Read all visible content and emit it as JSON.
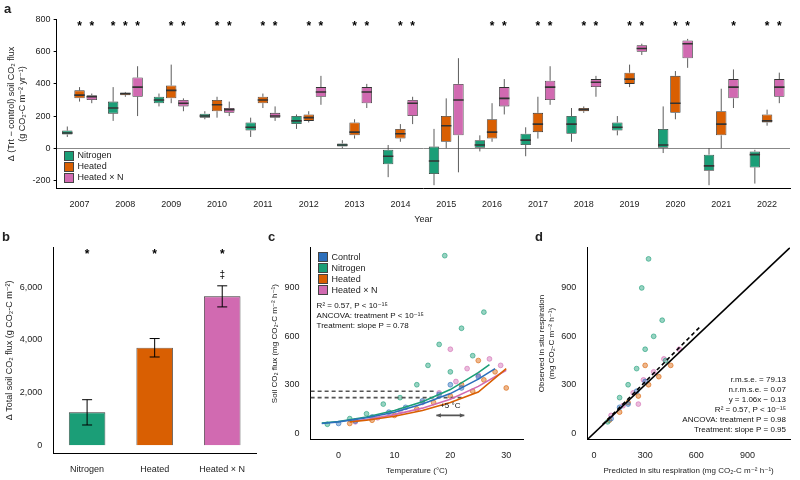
{
  "chart_data": [
    {
      "type": "boxplot",
      "title": "a",
      "xlabel": "Year",
      "ylabel": [
        "Δ (Trt − control) soil CO₂ flux",
        "(g CO₂-C m⁻² yr⁻¹)"
      ],
      "categories": [
        2007,
        2008,
        2009,
        2010,
        2011,
        2012,
        2013,
        2014,
        2015,
        2016,
        2017,
        2018,
        2019,
        2020,
        2021,
        2022
      ],
      "ylim": [
        -250,
        800
      ],
      "yticks": [
        -200,
        0,
        200,
        400,
        600,
        800
      ],
      "legend": "lower left",
      "significance_label": "*",
      "series": [
        {
          "name": "Nitrogen",
          "color": "#1b9e77",
          "boxes": [
            [
              70,
              85,
              95,
              110,
              135
            ],
            [
              170,
              215,
              250,
              290,
              380
            ],
            [
              260,
              280,
              300,
              320,
              340
            ],
            [
              180,
              190,
              200,
              215,
              230
            ],
            [
              70,
              110,
              130,
              160,
              190
            ],
            [
              120,
              150,
              170,
              200,
              210
            ],
            [
              0,
              10,
              20,
              30,
              50
            ],
            [
              -180,
              -100,
              -50,
              -10,
              20
            ],
            [
              -230,
              -160,
              -80,
              10,
              120
            ],
            [
              -20,
              0,
              20,
              50,
              80
            ],
            [
              -50,
              20,
              50,
              90,
              130
            ],
            [
              40,
              90,
              150,
              200,
              250
            ],
            [
              80,
              110,
              130,
              160,
              200
            ],
            [
              -30,
              0,
              20,
              120,
              260
            ],
            [
              -230,
              -140,
              -110,
              -40,
              0
            ],
            [
              -220,
              -120,
              -40,
              -20,
              -10
            ]
          ],
          "significant": [
            false,
            true,
            false,
            false,
            false,
            false,
            false,
            false,
            false,
            false,
            false,
            false,
            false,
            false,
            false,
            false
          ]
        },
        {
          "name": "Heated",
          "color": "#d95f02",
          "boxes": [
            [
              290,
              310,
              330,
              360,
              380
            ],
            [
              320,
              330,
              340,
              345,
              350
            ],
            [
              280,
              310,
              360,
              390,
              520
            ],
            [
              190,
              230,
              270,
              300,
              320
            ],
            [
              250,
              280,
              300,
              320,
              340
            ],
            [
              160,
              170,
              190,
              210,
              230
            ],
            [
              60,
              80,
              100,
              160,
              180
            ],
            [
              40,
              60,
              90,
              120,
              150
            ],
            [
              0,
              40,
              140,
              200,
              310
            ],
            [
              40,
              60,
              100,
              180,
              280
            ],
            [
              60,
              100,
              150,
              220,
              320
            ],
            [
              220,
              230,
              240,
              250,
              260
            ],
            [
              380,
              400,
              430,
              470,
              520
            ],
            [
              180,
              220,
              280,
              450,
              480
            ],
            [
              0,
              80,
              150,
              230,
              370
            ],
            [
              140,
              160,
              170,
              210,
              240
            ]
          ],
          "significant": [
            true,
            true,
            true,
            true,
            true,
            true,
            true,
            true,
            false,
            true,
            true,
            true,
            true,
            true,
            false,
            true
          ]
        },
        {
          "name": "Heated × N",
          "color": "#d16ab1",
          "boxes": [
            [
              280,
              300,
              320,
              330,
              340
            ],
            [
              200,
              320,
              380,
              440,
              510
            ],
            [
              230,
              260,
              280,
              300,
              310
            ],
            [
              200,
              220,
              240,
              250,
              290
            ],
            [
              170,
              190,
              200,
              220,
              260
            ],
            [
              270,
              320,
              350,
              380,
              450
            ],
            [
              250,
              280,
              350,
              380,
              400
            ],
            [
              150,
              200,
              280,
              300,
              320
            ],
            [
              -150,
              80,
              300,
              400,
              560
            ],
            [
              210,
              260,
              310,
              380,
              430
            ],
            [
              270,
              300,
              380,
              420,
              510
            ],
            [
              320,
              380,
              410,
              430,
              450
            ],
            [
              580,
              600,
              620,
              640,
              650
            ],
            [
              500,
              560,
              650,
              670,
              680
            ],
            [
              250,
              310,
              380,
              430,
              490
            ],
            [
              280,
              320,
              380,
              430,
              470
            ]
          ],
          "significant": [
            true,
            true,
            true,
            true,
            true,
            true,
            true,
            true,
            false,
            true,
            true,
            true,
            true,
            true,
            true,
            true
          ]
        }
      ]
    },
    {
      "type": "bar",
      "title": "b",
      "ylabel": "Δ Total soil CO₂ flux (g CO₂-C m⁻²)",
      "categories": [
        "Nitrogen",
        "Heated",
        "Heated × N"
      ],
      "values": [
        1250,
        3700,
        5650
      ],
      "errors": [
        480,
        350,
        400
      ],
      "colors": [
        "#1b9e77",
        "#d95f02",
        "#d16ab1"
      ],
      "significance": [
        "*",
        "*",
        "*"
      ],
      "annotations": [
        {
          "text": "‡",
          "x": "Heated × N",
          "y": 6450
        }
      ],
      "ylim": [
        -300,
        7500
      ],
      "yticks": [
        0,
        {
          "value": 2000,
          "label": "2,000"
        },
        {
          "value": 4000,
          "label": "4,000"
        },
        {
          "value": 6000,
          "label": "6,000"
        }
      ]
    },
    {
      "type": "scatter",
      "title": "c",
      "xlabel": "Temperature (°C)",
      "ylabel": "Soil CO₂ flux (mg CO₂-C m⁻² h⁻¹)",
      "xlim": [
        -5,
        33
      ],
      "xticks": [
        0,
        10,
        20,
        30
      ],
      "ylim": [
        -40,
        1150
      ],
      "yticks": [
        0,
        300,
        600,
        900
      ],
      "legend": "upper left",
      "annotations": [
        {
          "text": "R² = 0.57, P < 10⁻¹⁵"
        },
        {
          "text": "ANCOVA: treatment P < 10⁻¹⁵"
        },
        {
          "text": "Treatment: slope P = 0.78"
        },
        {
          "text": "+5 °C",
          "x": 20,
          "y": 170
        }
      ],
      "series": [
        {
          "name": "Control",
          "color": "#2c6fbb",
          "x": [
            0,
            3,
            6,
            9,
            12,
            15,
            18,
            20,
            22,
            25
          ],
          "values": [
            60,
            75,
            100,
            130,
            160,
            200,
            240,
            300,
            280,
            350
          ]
        },
        {
          "name": "Nitrogen",
          "color": "#1b9e77",
          "x": [
            -2,
            2,
            5,
            8,
            11,
            14,
            16,
            18,
            20,
            22,
            24,
            26,
            19
          ],
          "values": [
            55,
            90,
            120,
            180,
            220,
            300,
            420,
            550,
            380,
            650,
            480,
            750,
            1100
          ]
        },
        {
          "name": "Heated",
          "color": "#d95f02",
          "x": [
            2,
            6,
            10,
            14,
            17,
            20,
            22,
            24,
            26,
            28,
            30,
            25
          ],
          "values": [
            60,
            80,
            110,
            150,
            190,
            230,
            300,
            260,
            330,
            380,
            280,
            450
          ]
        },
        {
          "name": "Heated × N",
          "color": "#d16ab1",
          "x": [
            3,
            7,
            11,
            15,
            18,
            21,
            23,
            25,
            27,
            29,
            20
          ],
          "values": [
            70,
            95,
            140,
            190,
            250,
            320,
            400,
            360,
            460,
            420,
            520
          ]
        },
        {
          "type": "line",
          "color": "#2c6fbb",
          "x": [
            -3,
            0,
            5,
            10,
            15,
            20,
            25,
            28
          ],
          "values": [
            60,
            70,
            95,
            130,
            180,
            245,
            335,
            400
          ]
        },
        {
          "type": "line",
          "color": "#1b9e77",
          "x": [
            -3,
            0,
            5,
            10,
            15,
            20,
            25,
            27
          ],
          "values": [
            62,
            72,
            100,
            140,
            195,
            270,
            375,
            425
          ]
        },
        {
          "type": "line",
          "color": "#d95f02",
          "x": [
            2,
            5,
            10,
            15,
            20,
            25,
            30
          ],
          "values": [
            70,
            80,
            105,
            140,
            190,
            255,
            400
          ]
        },
        {
          "type": "line",
          "color": "#d16ab1",
          "x": [
            2,
            5,
            10,
            15,
            20,
            25,
            30
          ],
          "values": [
            72,
            85,
            115,
            155,
            210,
            290,
            390
          ]
        },
        {
          "type": "line",
          "line_style": "dashed",
          "color": "#555555",
          "x": [
            -5,
            17.5
          ],
          "values": [
            260,
            260
          ]
        },
        {
          "type": "line",
          "line_style": "dashed",
          "color": "#555555",
          "x": [
            -5,
            22.5
          ],
          "values": [
            220,
            220
          ]
        },
        {
          "type": "line",
          "marker": "arrow",
          "color": "#555555",
          "x": [
            17.5,
            22.5
          ],
          "values": [
            110,
            110
          ]
        }
      ]
    },
    {
      "type": "scatter",
      "title": "d",
      "xlabel": "Predicted in situ respiration (mg CO₂-C m⁻² h⁻¹)",
      "ylabel": [
        "Observed in situ respiration",
        "(mg CO₂-C m⁻² h⁻¹)"
      ],
      "xlim": [
        -40,
        1150
      ],
      "xticks": [
        0,
        300,
        600,
        900
      ],
      "ylim": [
        -40,
        1150
      ],
      "yticks": [
        0,
        300,
        600,
        900
      ],
      "annotations": [
        {
          "text": "r.m.s.e. = 79.13"
        },
        {
          "text": "n.r.m.s.e. = 0.07"
        },
        {
          "text": "y = 1.06x − 0.13"
        },
        {
          "text": "R² = 0.57, P < 10⁻¹⁵"
        },
        {
          "text": "ANCOVA: treatment P = 0.98"
        },
        {
          "text": "Treatment: slope P = 0.95"
        }
      ],
      "series": [
        {
          "color": "#2c6fbb",
          "x": [
            100,
            150,
            200,
            250,
            300
          ],
          "values": [
            90,
            160,
            180,
            260,
            320
          ]
        },
        {
          "color": "#1b9e77",
          "x": [
            80,
            150,
            200,
            250,
            300,
            350,
            400,
            280,
            420,
            320
          ],
          "values": [
            70,
            220,
            300,
            400,
            520,
            600,
            700,
            900,
            450,
            1080
          ]
        },
        {
          "color": "#d95f02",
          "x": [
            90,
            150,
            200,
            260,
            320,
            380,
            450,
            300
          ],
          "values": [
            80,
            130,
            190,
            230,
            300,
            350,
            420,
            420
          ]
        },
        {
          "color": "#d16ab1",
          "x": [
            100,
            170,
            230,
            290,
            350,
            410,
            500,
            260
          ],
          "values": [
            110,
            170,
            250,
            330,
            380,
            460,
            520,
            180
          ]
        },
        {
          "type": "line",
          "color": "#000000",
          "x": [
            -40,
            1150
          ],
          "values": [
            -40,
            1150
          ]
        },
        {
          "type": "line",
          "line_style": "dashed",
          "color": "#000000",
          "x": [
            50,
            620
          ],
          "values": [
            53,
            657
          ]
        }
      ]
    }
  ]
}
